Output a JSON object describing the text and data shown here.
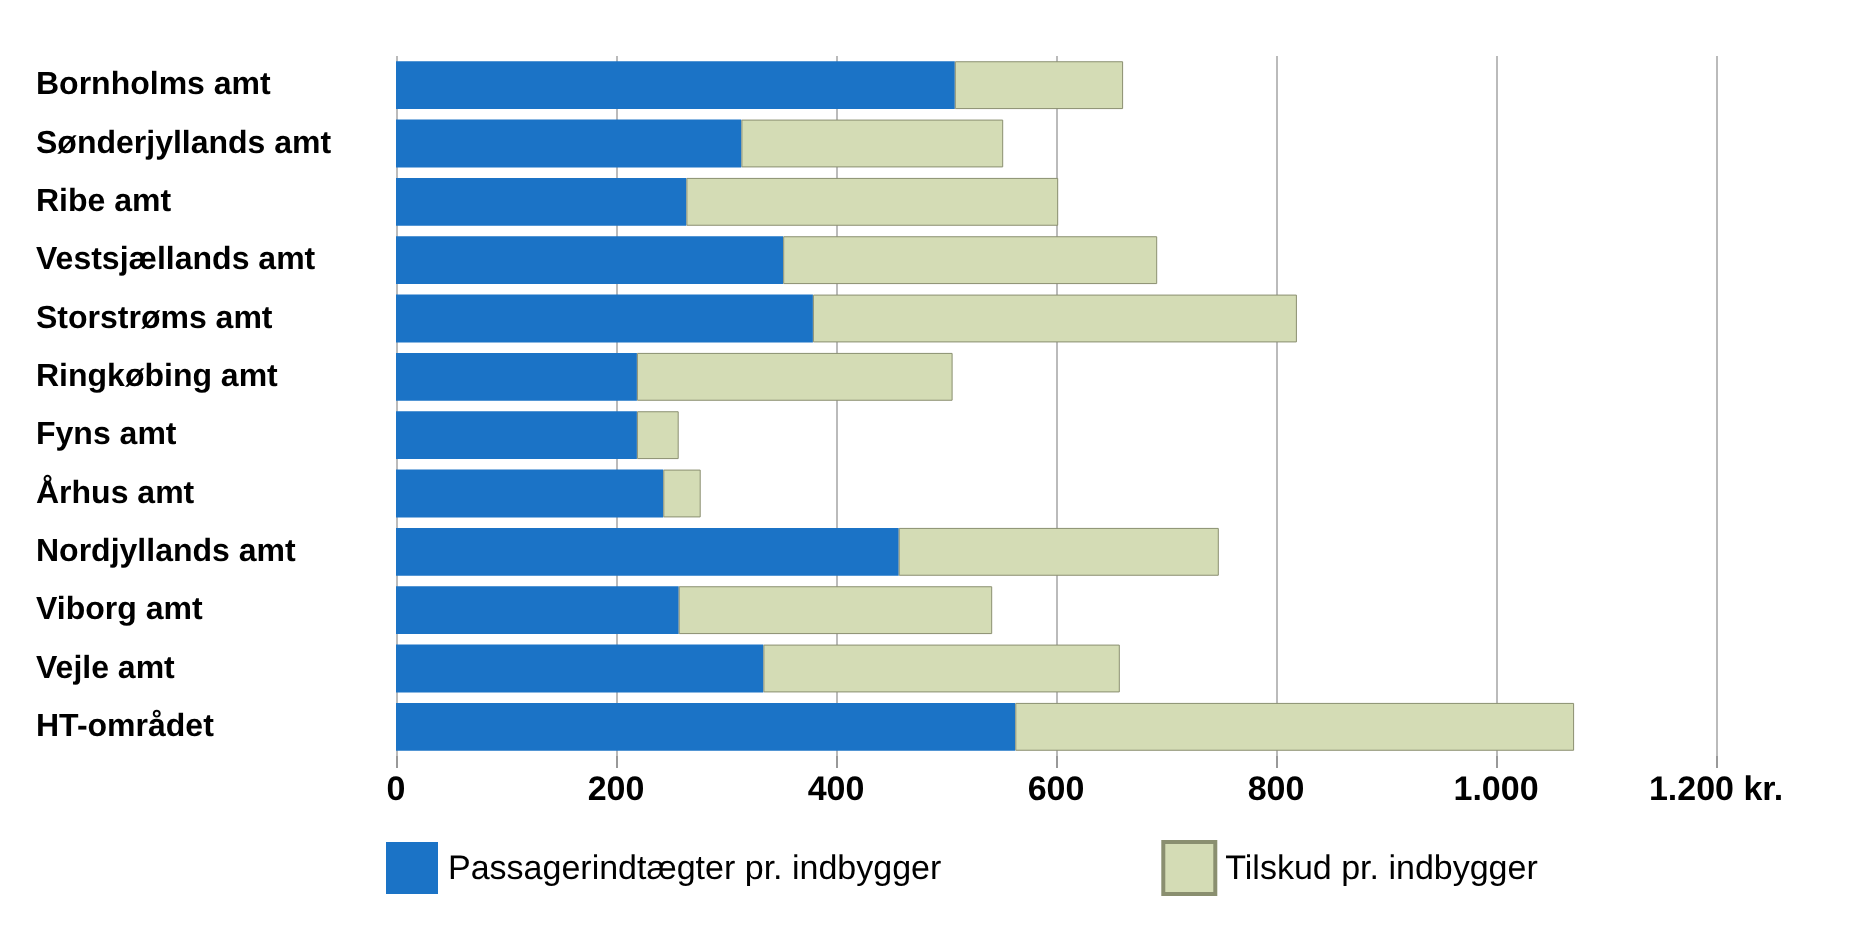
{
  "chart_data": {
    "type": "bar",
    "orientation": "horizontal",
    "stacked": true,
    "categories": [
      "Bornholms amt",
      "Sønderjyllands amt",
      "Ribe amt",
      "Vestsjællands amt",
      "Storstrøms amt",
      "Ringkøbing amt",
      "Fyns amt",
      "Århus amt",
      "Nordjyllands amt",
      "Viborg amt",
      "Vejle amt",
      "HT-området"
    ],
    "series": [
      {
        "name": "Passagerindtægter pr. indbygger",
        "color": "#1b73c6",
        "values": [
          508,
          314,
          264,
          352,
          379,
          219,
          219,
          243,
          457,
          257,
          334,
          563
        ]
      },
      {
        "name": "Tilskud pr. indbygger",
        "color": "#d4dcb5",
        "values": [
          153,
          238,
          338,
          340,
          440,
          287,
          38,
          34,
          291,
          285,
          324,
          508
        ]
      }
    ],
    "xlim": [
      0,
      1200
    ],
    "xticks": [
      0,
      200,
      400,
      600,
      800,
      {
        "value": 1000,
        "label": "1.000"
      },
      {
        "value": 1200,
        "label": "1.200 kr."
      }
    ],
    "grid": "x",
    "legend": "bottom"
  }
}
